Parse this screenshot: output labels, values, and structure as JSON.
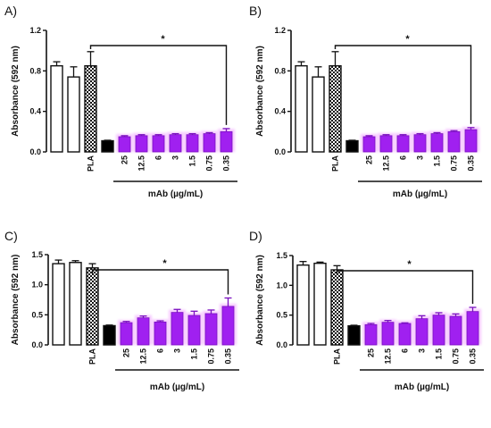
{
  "chart_data": [
    {
      "panel": "A)",
      "type": "bar",
      "categories": [
        "",
        "",
        "PLA",
        "",
        "25",
        "12.5",
        "6",
        "3",
        "1.5",
        "0.75",
        "0.35"
      ],
      "values": [
        0.85,
        0.74,
        0.85,
        0.11,
        0.15,
        0.16,
        0.16,
        0.17,
        0.17,
        0.18,
        0.2
      ],
      "errors": [
        0.04,
        0.1,
        0.14,
        0.005,
        0.01,
        0.01,
        0.01,
        0.01,
        0.01,
        0.01,
        0.03
      ],
      "fills": [
        "#ffffff",
        "#ffffff",
        "check",
        "#000000",
        "#a020f0",
        "#a020f0",
        "#a020f0",
        "#a020f0",
        "#a020f0",
        "#a020f0",
        "#a020f0"
      ],
      "ylabel": "Absorbance (592 nm)",
      "ylim": [
        0,
        1.2
      ],
      "yticks": [
        "0.0",
        "0.4",
        "0.8",
        "1.2"
      ],
      "group_label": "mAb (µg/mL)",
      "annotation": "*"
    },
    {
      "panel": "B)",
      "type": "bar",
      "categories": [
        "",
        "",
        "PLA",
        "",
        "25",
        "12.5",
        "6",
        "3",
        "1.5",
        "0.75",
        "0.35"
      ],
      "values": [
        0.85,
        0.74,
        0.85,
        0.11,
        0.15,
        0.16,
        0.16,
        0.17,
        0.18,
        0.2,
        0.22
      ],
      "errors": [
        0.04,
        0.1,
        0.14,
        0.005,
        0.01,
        0.01,
        0.01,
        0.01,
        0.01,
        0.01,
        0.02
      ],
      "fills": [
        "#ffffff",
        "#ffffff",
        "check",
        "#000000",
        "#a020f0",
        "#a020f0",
        "#a020f0",
        "#a020f0",
        "#a020f0",
        "#a020f0",
        "#a020f0"
      ],
      "ylabel": "Absorbance (592 nm)",
      "ylim": [
        0,
        1.2
      ],
      "yticks": [
        "0.0",
        "0.4",
        "0.8",
        "1.2"
      ],
      "group_label": "mAb (µg/mL)",
      "annotation": "*"
    },
    {
      "panel": "C)",
      "type": "bar",
      "categories": [
        "",
        "",
        "PLA",
        "",
        "25",
        "12.5",
        "6",
        "3",
        "1.5",
        "0.75",
        "0.35"
      ],
      "values": [
        1.35,
        1.37,
        1.28,
        0.32,
        0.37,
        0.45,
        0.38,
        0.54,
        0.49,
        0.52,
        0.64
      ],
      "errors": [
        0.06,
        0.03,
        0.07,
        0.01,
        0.02,
        0.03,
        0.02,
        0.05,
        0.07,
        0.06,
        0.14
      ],
      "fills": [
        "#ffffff",
        "#ffffff",
        "check",
        "#000000",
        "#a020f0",
        "#a020f0",
        "#a020f0",
        "#a020f0",
        "#a020f0",
        "#a020f0",
        "#a020f0"
      ],
      "ylabel": "Absorbance (592 nm)",
      "ylim": [
        0,
        1.5
      ],
      "yticks": [
        "0.0",
        "0.5",
        "1.0",
        "1.5"
      ],
      "group_label": "mAb (µg/mL)",
      "annotation": "*"
    },
    {
      "panel": "D)",
      "type": "bar",
      "categories": [
        "",
        "",
        "PLA",
        "",
        "25",
        "12.5",
        "6",
        "3",
        "1.5",
        "0.75",
        "0.35"
      ],
      "values": [
        1.34,
        1.37,
        1.26,
        0.32,
        0.34,
        0.38,
        0.36,
        0.44,
        0.5,
        0.48,
        0.56
      ],
      "errors": [
        0.06,
        0.02,
        0.07,
        0.01,
        0.02,
        0.03,
        0.01,
        0.05,
        0.04,
        0.04,
        0.07
      ],
      "fills": [
        "#ffffff",
        "#ffffff",
        "check",
        "#000000",
        "#a020f0",
        "#a020f0",
        "#a020f0",
        "#a020f0",
        "#a020f0",
        "#a020f0",
        "#a020f0"
      ],
      "ylabel": "Absorbance (592 nm)",
      "ylim": [
        0,
        1.5
      ],
      "yticks": [
        "0.0",
        "0.5",
        "1.0",
        "1.5"
      ],
      "group_label": "mAb (µg/mL)",
      "annotation": "*"
    }
  ],
  "colors": {
    "treated": "#a020f0",
    "glow": "#f3b4ff",
    "control_dark": "#000000"
  }
}
